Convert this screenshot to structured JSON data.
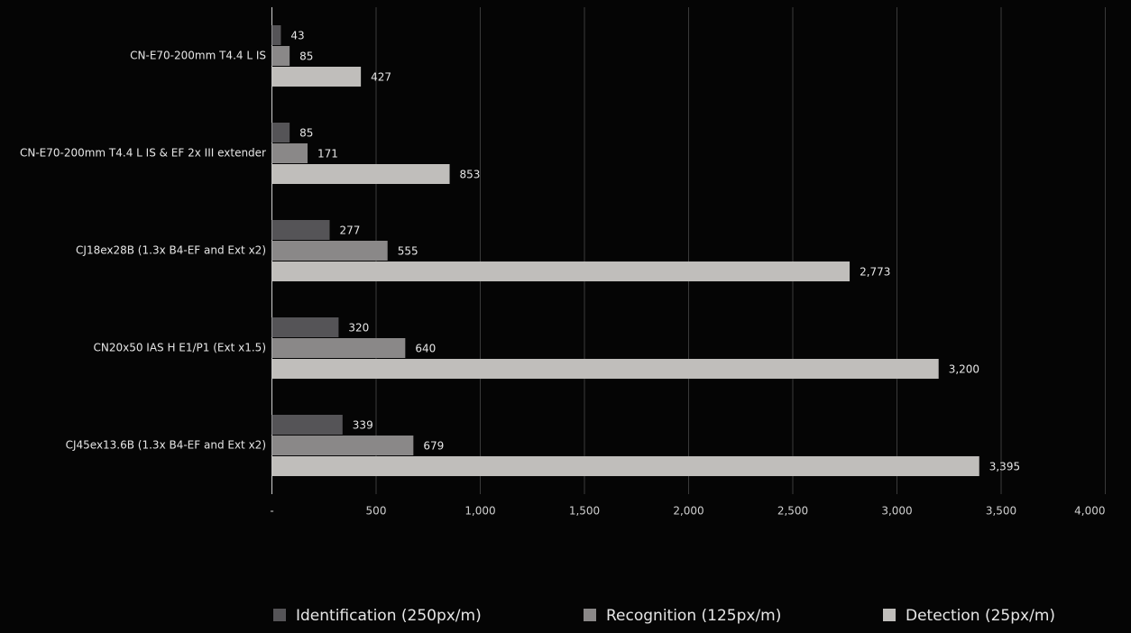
{
  "chart_data": {
    "type": "bar",
    "orientation": "horizontal",
    "categories": [
      "CN-E70-200mm T4.4 L IS",
      "CN-E70-200mm T4.4 L IS & EF 2x III extender",
      "CJ18ex28B (1.3x B4-EF and Ext x2)",
      "CN20x50 IAS H E1/P1 (Ext x1.5)",
      "CJ45ex13.6B (1.3x B4-EF and Ext x2)"
    ],
    "series": [
      {
        "name": "Identification (250px/m)",
        "color": "#555457",
        "values": [
          43,
          85,
          277,
          320,
          339
        ]
      },
      {
        "name": "Recognition (125px/m)",
        "color": "#8a8888",
        "values": [
          85,
          171,
          555,
          640,
          679
        ]
      },
      {
        "name": "Detection (25px/m)",
        "color": "#c0bebb",
        "values": [
          427,
          853,
          2773,
          3200,
          3395
        ],
        "value_labels": [
          "427",
          "853",
          "2,773",
          "3,200",
          "3,395"
        ]
      }
    ],
    "xlim": [
      0,
      4000
    ],
    "xticks": [
      {
        "value": 0,
        "label": "-"
      },
      500,
      {
        "value": 1000,
        "label": "1,000"
      },
      {
        "value": 1500,
        "label": "1,500"
      },
      {
        "value": 2000,
        "label": "2,000"
      },
      {
        "value": 2500,
        "label": "2,500"
      },
      {
        "value": 3000,
        "label": "3,000"
      },
      {
        "value": 3500,
        "label": "3,500"
      },
      {
        "value": 4000,
        "label": "4,000"
      }
    ],
    "grid": true,
    "legend": "bottom"
  }
}
